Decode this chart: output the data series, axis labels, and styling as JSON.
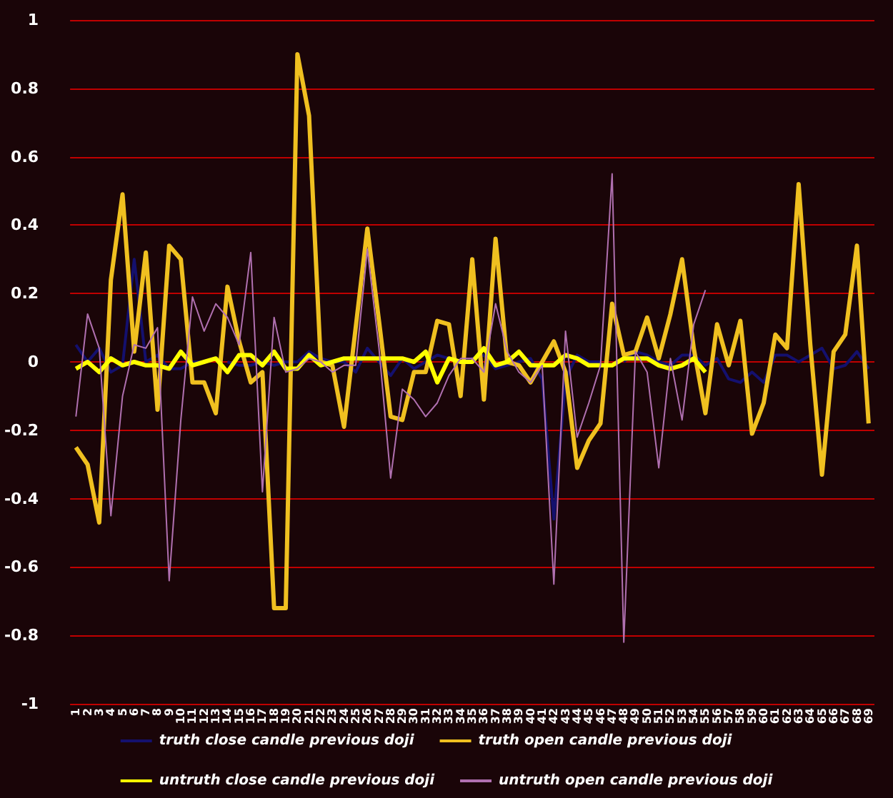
{
  "chart_data": {
    "type": "line",
    "categories": [
      "1",
      "2",
      "3",
      "4",
      "5",
      "6",
      "7",
      "8",
      "9",
      "10",
      "11",
      "12",
      "13",
      "14",
      "15",
      "16",
      "17",
      "18",
      "19",
      "20",
      "21",
      "22",
      "23",
      "24",
      "25",
      "26",
      "27",
      "28",
      "29",
      "30",
      "31",
      "32",
      "33",
      "34",
      "35",
      "36",
      "37",
      "38",
      "39",
      "40",
      "41",
      "42",
      "43",
      "44",
      "45",
      "46",
      "47",
      "48",
      "49",
      "50",
      "51",
      "52",
      "53",
      "54",
      "55",
      "56",
      "57",
      "58",
      "59",
      "60",
      "61",
      "62",
      "63",
      "64",
      "65",
      "66",
      "67",
      "68",
      "69"
    ],
    "series": [
      {
        "name": "truth close candle previous doji",
        "color": "#14106e",
        "values": [
          0.05,
          0.0,
          0.04,
          -0.03,
          -0.01,
          0.3,
          0.0,
          0.02,
          -0.02,
          -0.02,
          0.0,
          0.0,
          null,
          0.0,
          -0.01,
          -0.01,
          0.0,
          -0.01,
          0.0,
          0.0,
          0.03,
          0.01,
          0.0,
          0.0,
          -0.03,
          0.04,
          0.0,
          -0.04,
          0.01,
          -0.02,
          0.0,
          0.02,
          0.01,
          0.0,
          0.01,
          0.02,
          -0.02,
          -0.01,
          0.0,
          0.01,
          -0.05,
          -0.46,
          -0.05,
          0.02,
          0.0,
          0.0,
          null,
          0.0,
          0.03,
          0.02,
          0.0,
          -0.01,
          0.02,
          0.02,
          -0.01,
          0.01,
          -0.05,
          -0.06,
          -0.03,
          -0.06,
          0.02,
          0.02,
          0.0,
          0.02,
          0.04,
          -0.02,
          -0.01,
          0.03,
          -0.02
        ]
      },
      {
        "name": "truth open candle previous doji",
        "color": "#f0c020",
        "values": [
          -0.25,
          -0.3,
          -0.47,
          0.24,
          0.49,
          0.03,
          0.32,
          -0.14,
          0.34,
          0.3,
          -0.06,
          -0.06,
          -0.15,
          0.22,
          0.06,
          -0.06,
          -0.03,
          -0.72,
          -0.72,
          0.9,
          0.72,
          0.0,
          -0.01,
          -0.19,
          0.1,
          0.39,
          0.12,
          -0.16,
          -0.17,
          -0.03,
          -0.03,
          0.12,
          0.11,
          -0.1,
          0.3,
          -0.11,
          0.36,
          0.0,
          -0.01,
          -0.06,
          0.0,
          0.06,
          -0.03,
          -0.31,
          -0.23,
          -0.18,
          0.17,
          0.02,
          0.03,
          0.13,
          0.01,
          0.14,
          0.3,
          0.04,
          -0.15,
          0.11,
          -0.01,
          0.12,
          -0.21,
          -0.12,
          0.08,
          0.04,
          0.52,
          0.05,
          -0.33,
          0.03,
          0.08,
          0.34,
          -0.18
        ]
      },
      {
        "name": "untruth close candle previous doji",
        "color": "#ffff00",
        "values": [
          -0.02,
          0.0,
          -0.03,
          0.01,
          -0.01,
          0.0,
          -0.01,
          -0.01,
          -0.02,
          0.03,
          -0.01,
          0.0,
          0.01,
          -0.03,
          0.02,
          0.02,
          -0.01,
          0.03,
          -0.02,
          -0.02,
          0.02,
          -0.01,
          0.0,
          0.01,
          0.01,
          0.01,
          0.01,
          0.01,
          0.01,
          0.0,
          0.03,
          -0.06,
          0.01,
          0.0,
          0.0,
          0.04,
          -0.01,
          0.0,
          0.03,
          -0.01,
          -0.01,
          -0.01,
          0.02,
          0.01,
          -0.01,
          -0.01,
          -0.01,
          0.01,
          0.01,
          0.01,
          -0.01,
          -0.02,
          -0.01,
          0.01,
          -0.03,
          null,
          null,
          null,
          null,
          null,
          null,
          null,
          null,
          null,
          null,
          null,
          null,
          null,
          null
        ]
      },
      {
        "name": "untruth open candle previous doji",
        "color": "#b070b0",
        "values": [
          -0.16,
          0.14,
          0.04,
          -0.45,
          -0.1,
          0.05,
          0.04,
          0.1,
          -0.64,
          -0.17,
          0.19,
          0.09,
          0.17,
          0.13,
          0.05,
          0.32,
          -0.38,
          0.13,
          -0.03,
          -0.02,
          0.01,
          0.0,
          -0.03,
          -0.01,
          -0.01,
          0.33,
          0.04,
          -0.34,
          -0.08,
          -0.11,
          -0.16,
          -0.12,
          -0.04,
          0.01,
          0.01,
          -0.03,
          0.17,
          0.03,
          -0.03,
          -0.06,
          -0.01,
          -0.65,
          0.09,
          -0.22,
          -0.12,
          -0.01,
          0.55,
          -0.82,
          0.03,
          -0.03,
          -0.31,
          0.01,
          -0.17,
          0.11,
          0.21,
          null,
          null,
          null,
          null,
          null,
          null,
          null,
          null,
          null,
          null,
          null,
          null,
          null,
          null
        ]
      }
    ],
    "ylim": [
      -1,
      1
    ],
    "yticks": [
      -1,
      -0.8,
      -0.6,
      -0.4,
      -0.2,
      0,
      0.2,
      0.4,
      0.6,
      0.8,
      1
    ],
    "grid": "y",
    "legend": "bottom",
    "marker": "none",
    "line_style": "solid"
  }
}
